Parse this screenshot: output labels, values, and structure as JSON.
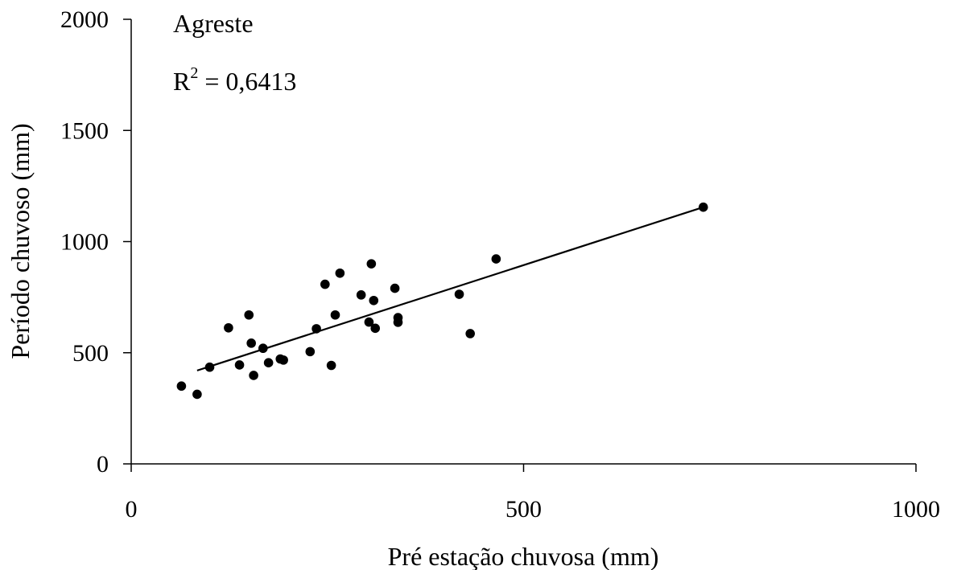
{
  "chart_data": {
    "type": "scatter",
    "title": "",
    "xlabel": "Pré estação chuvosa (mm)",
    "ylabel": "Período chuvoso (mm)",
    "xlim": [
      0,
      1000
    ],
    "ylim": [
      0,
      2000
    ],
    "xticks": [
      0,
      500,
      1000
    ],
    "yticks": [
      0,
      500,
      1000,
      1500,
      2000
    ],
    "xtick_labels": [
      "0",
      "500",
      "1000"
    ],
    "ytick_labels": [
      "0",
      "500",
      "1000",
      "1500",
      "2000"
    ],
    "grid": false,
    "legend": "none",
    "annotations": {
      "region": "Agreste",
      "r2_base": "R",
      "r2_sup": "2",
      "r2_value": " = 0,6413"
    },
    "points": [
      {
        "x": 84,
        "y": 313
      },
      {
        "x": 64,
        "y": 350
      },
      {
        "x": 100,
        "y": 435
      },
      {
        "x": 124,
        "y": 612
      },
      {
        "x": 138,
        "y": 445
      },
      {
        "x": 150,
        "y": 670
      },
      {
        "x": 153,
        "y": 543
      },
      {
        "x": 156,
        "y": 398
      },
      {
        "x": 168,
        "y": 520
      },
      {
        "x": 175,
        "y": 455
      },
      {
        "x": 190,
        "y": 472
      },
      {
        "x": 194,
        "y": 467
      },
      {
        "x": 228,
        "y": 505
      },
      {
        "x": 236,
        "y": 608
      },
      {
        "x": 247,
        "y": 808
      },
      {
        "x": 255,
        "y": 443
      },
      {
        "x": 260,
        "y": 670
      },
      {
        "x": 266,
        "y": 858
      },
      {
        "x": 293,
        "y": 760
      },
      {
        "x": 303,
        "y": 638
      },
      {
        "x": 306,
        "y": 900
      },
      {
        "x": 309,
        "y": 735
      },
      {
        "x": 311,
        "y": 610
      },
      {
        "x": 336,
        "y": 790
      },
      {
        "x": 340,
        "y": 658
      },
      {
        "x": 340,
        "y": 637
      },
      {
        "x": 418,
        "y": 763
      },
      {
        "x": 432,
        "y": 586
      },
      {
        "x": 465,
        "y": 922
      },
      {
        "x": 729,
        "y": 1155
      }
    ],
    "trendline": {
      "x": [
        84,
        729
      ],
      "y": [
        420,
        1155
      ]
    }
  },
  "colors": {
    "marker": "#000000",
    "line": "#000000",
    "axis": "#000000"
  }
}
